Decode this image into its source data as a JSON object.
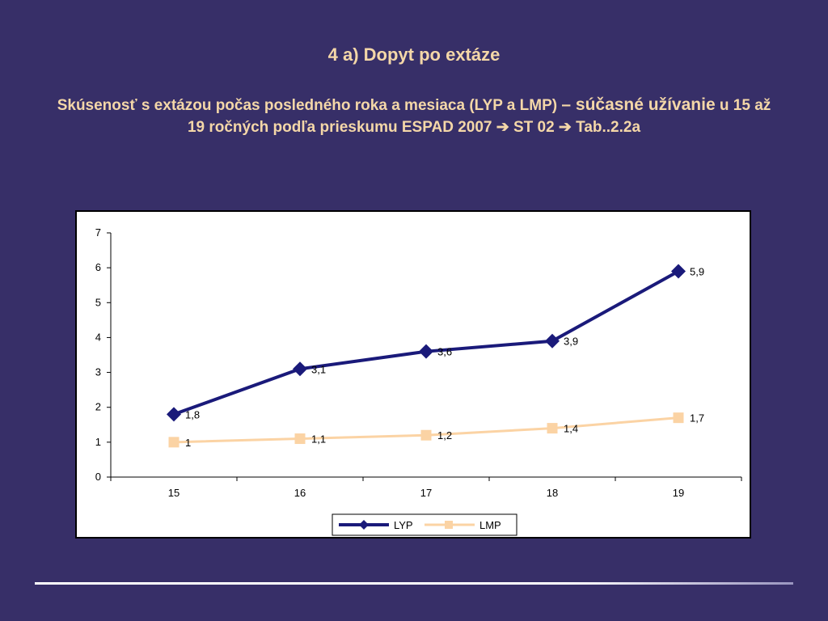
{
  "slide": {
    "title": "4 a) Dopyt po extáze",
    "subtitle_part1": "Skúsenosť s extázou počas posledného roka a mesiaca  (LYP a LMP) ",
    "subtitle_emph": "– súčasné užívanie",
    "subtitle_part2": " u 15 až 19 ročných podľa prieskumu ESPAD 2007 ➔ ST 02  ➔ Tab..2.2a"
  },
  "chart_data": {
    "type": "line",
    "categories": [
      "15",
      "16",
      "17",
      "18",
      "19"
    ],
    "ylim": [
      0,
      7
    ],
    "yticks": [
      "0",
      "1",
      "2",
      "3",
      "4",
      "5",
      "6",
      "7"
    ],
    "series": [
      {
        "name": "LYP",
        "values": [
          1.8,
          3.1,
          3.6,
          3.9,
          5.9
        ],
        "labels": [
          "1,8",
          "3,1",
          "3,6",
          "3,9",
          "5,9"
        ],
        "color": "#1a1a7a",
        "marker": "diamond"
      },
      {
        "name": "LMP",
        "values": [
          1,
          1.1,
          1.2,
          1.4,
          1.7
        ],
        "labels": [
          "1",
          "1,1",
          "1,2",
          "1,4",
          "1,7"
        ],
        "color": "#fbd3a4",
        "marker": "square"
      }
    ],
    "legend_position": "bottom",
    "grid": false
  }
}
